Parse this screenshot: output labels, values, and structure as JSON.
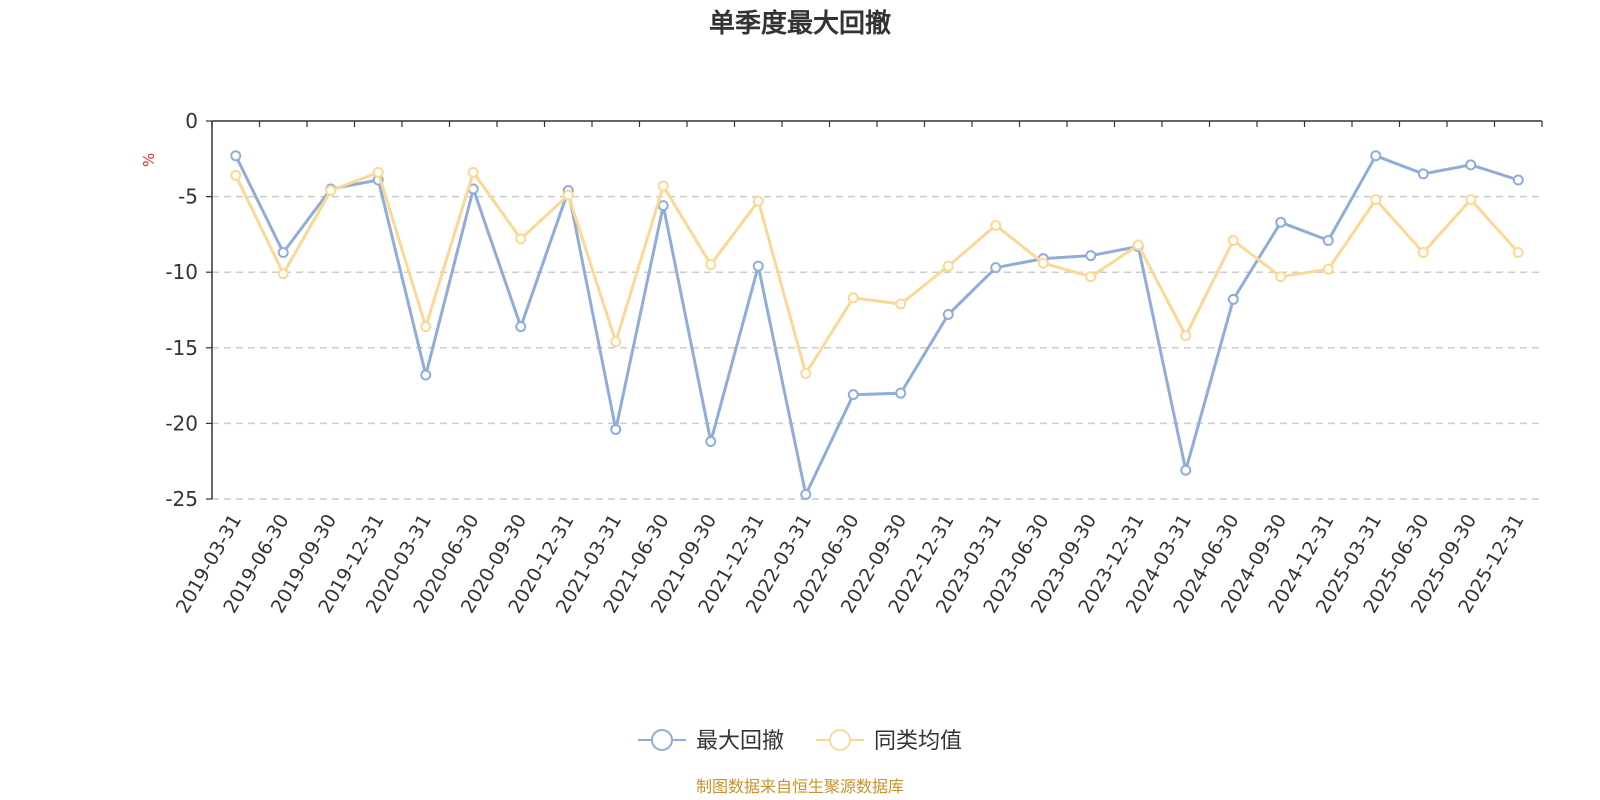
{
  "chart_data": {
    "type": "line",
    "title": "单季度最大回撤",
    "ylabel": "%",
    "ylim": [
      -25,
      0
    ],
    "yticks": [
      0,
      -5,
      -10,
      -15,
      -20,
      -25
    ],
    "grid": true,
    "legend_position": "bottom",
    "categories": [
      "2019-03-31",
      "2019-06-30",
      "2019-09-30",
      "2019-12-31",
      "2020-03-31",
      "2020-06-30",
      "2020-09-30",
      "2020-12-31",
      "2021-03-31",
      "2021-06-30",
      "2021-09-30",
      "2021-12-31",
      "2022-03-31",
      "2022-06-30",
      "2022-09-30",
      "2022-12-31",
      "2023-03-31",
      "2023-06-30",
      "2023-09-30",
      "2023-12-31",
      "2024-03-31",
      "2024-06-30",
      "2024-09-30",
      "2024-12-31",
      "2025-03-31",
      "2025-06-30",
      "2025-09-30",
      "2025-12-31"
    ],
    "series": [
      {
        "name": "最大回撤",
        "color": "#8fadd8",
        "values": [
          -2.3,
          -8.7,
          -4.5,
          -3.9,
          -16.8,
          -4.5,
          -13.6,
          -4.6,
          -20.4,
          -5.6,
          -21.2,
          -9.6,
          -24.7,
          -18.1,
          -18.0,
          -12.8,
          -9.7,
          -9.1,
          -8.9,
          -8.3,
          -23.1,
          -11.8,
          -6.7,
          -7.9,
          -2.3,
          -3.5,
          -2.9,
          -3.9
        ]
      },
      {
        "name": "同类均值",
        "color": "#fcd895",
        "values": [
          -3.6,
          -10.1,
          -4.6,
          -3.4,
          -13.6,
          -3.4,
          -7.8,
          -4.9,
          -14.6,
          -4.3,
          -9.5,
          -5.3,
          -16.7,
          -11.7,
          -12.1,
          -9.6,
          -6.9,
          -9.4,
          -10.3,
          -8.2,
          -14.2,
          -7.9,
          -10.3,
          -9.8,
          -5.2,
          -8.7,
          -5.2,
          -8.7
        ]
      }
    ]
  },
  "source": {
    "text": "制图数据来自恒生聚源数据库",
    "color": "#c8932a"
  },
  "ylabel_color": "#e03030"
}
